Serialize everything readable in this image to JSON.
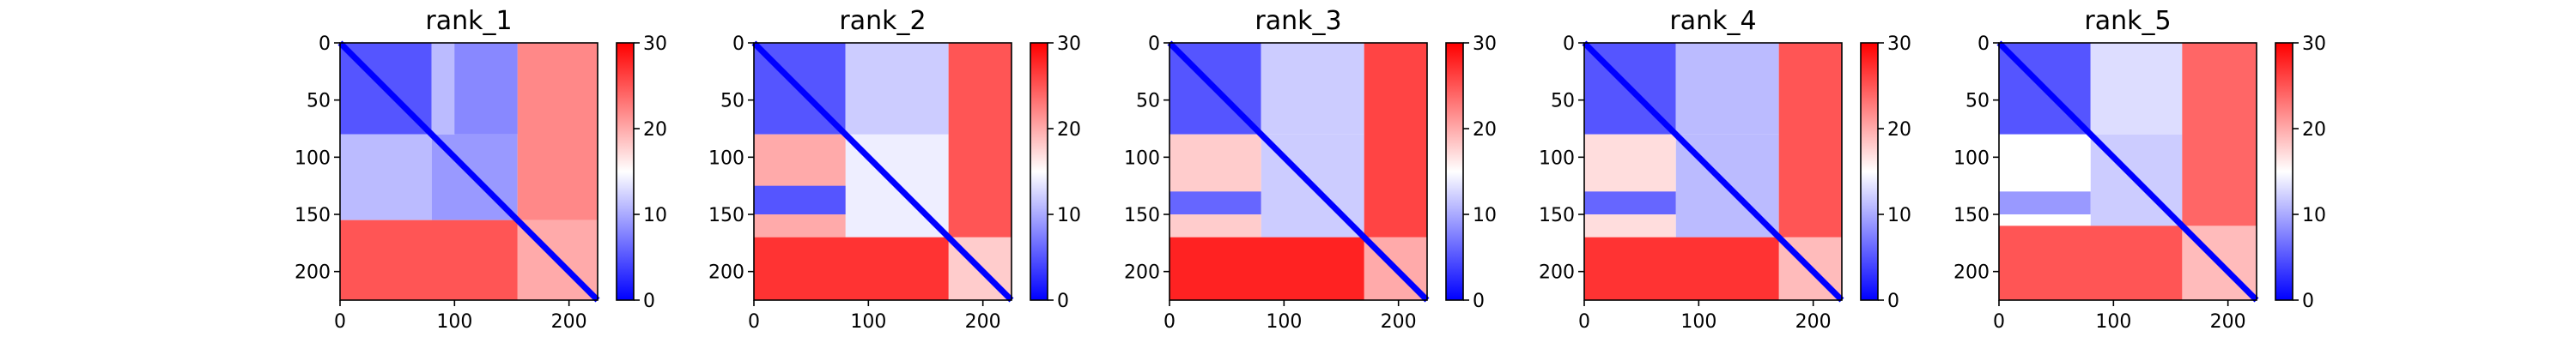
{
  "chart_data": [
    {
      "type": "heatmap",
      "title": "rank_1",
      "x_ticks": [
        "0",
        "100",
        "200"
      ],
      "y_ticks": [
        "0",
        "50",
        "100",
        "150",
        "200"
      ],
      "xlim": [
        0,
        225
      ],
      "ylim": [
        225,
        0
      ],
      "colorbar": {
        "ticks": [
          "0",
          "10",
          "20",
          "30"
        ],
        "range": [
          0,
          30
        ],
        "colormap": "bwr"
      },
      "blocks": [
        {
          "x0": 0,
          "x1": 80,
          "y0": 0,
          "y1": 80,
          "value": 5
        },
        {
          "x0": 80,
          "x1": 155,
          "y0": 80,
          "y1": 155,
          "value": 9
        },
        {
          "x0": 0,
          "x1": 80,
          "y0": 80,
          "y1": 155,
          "value": 11
        },
        {
          "x0": 80,
          "x1": 155,
          "y0": 0,
          "y1": 80,
          "value": 11
        },
        {
          "x0": 155,
          "x1": 225,
          "y0": 155,
          "y1": 225,
          "value": 20
        },
        {
          "x0": 0,
          "x1": 155,
          "y0": 155,
          "y1": 225,
          "value": 25
        },
        {
          "x0": 155,
          "x1": 225,
          "y0": 0,
          "y1": 155,
          "value": 22
        },
        {
          "x0": 100,
          "x1": 155,
          "y0": 0,
          "y1": 80,
          "value": 8
        }
      ]
    },
    {
      "type": "heatmap",
      "title": "rank_2",
      "x_ticks": [
        "0",
        "100",
        "200"
      ],
      "y_ticks": [
        "0",
        "50",
        "100",
        "150",
        "200"
      ],
      "xlim": [
        0,
        225
      ],
      "ylim": [
        225,
        0
      ],
      "colorbar": {
        "ticks": [
          "0",
          "10",
          "20",
          "30"
        ],
        "range": [
          0,
          30
        ],
        "colormap": "bwr"
      },
      "blocks": [
        {
          "x0": 0,
          "x1": 80,
          "y0": 0,
          "y1": 80,
          "value": 5
        },
        {
          "x0": 80,
          "x1": 170,
          "y0": 80,
          "y1": 170,
          "value": 14
        },
        {
          "x0": 0,
          "x1": 80,
          "y0": 80,
          "y1": 170,
          "value": 20
        },
        {
          "x0": 80,
          "x1": 170,
          "y0": 0,
          "y1": 80,
          "value": 12
        },
        {
          "x0": 0,
          "x1": 80,
          "y0": 125,
          "y1": 150,
          "value": 5
        },
        {
          "x0": 170,
          "x1": 225,
          "y0": 170,
          "y1": 225,
          "value": 18
        },
        {
          "x0": 0,
          "x1": 170,
          "y0": 170,
          "y1": 225,
          "value": 27
        },
        {
          "x0": 170,
          "x1": 225,
          "y0": 0,
          "y1": 170,
          "value": 25
        }
      ]
    },
    {
      "type": "heatmap",
      "title": "rank_3",
      "x_ticks": [
        "0",
        "100",
        "200"
      ],
      "y_ticks": [
        "0",
        "50",
        "100",
        "150",
        "200"
      ],
      "xlim": [
        0,
        225
      ],
      "ylim": [
        225,
        0
      ],
      "colorbar": {
        "ticks": [
          "0",
          "10",
          "20",
          "30"
        ],
        "range": [
          0,
          30
        ],
        "colormap": "bwr"
      },
      "blocks": [
        {
          "x0": 0,
          "x1": 80,
          "y0": 0,
          "y1": 80,
          "value": 5
        },
        {
          "x0": 80,
          "x1": 170,
          "y0": 80,
          "y1": 170,
          "value": 12
        },
        {
          "x0": 0,
          "x1": 80,
          "y0": 80,
          "y1": 170,
          "value": 18
        },
        {
          "x0": 80,
          "x1": 170,
          "y0": 0,
          "y1": 80,
          "value": 12
        },
        {
          "x0": 0,
          "x1": 80,
          "y0": 130,
          "y1": 150,
          "value": 6
        },
        {
          "x0": 170,
          "x1": 225,
          "y0": 170,
          "y1": 225,
          "value": 20
        },
        {
          "x0": 0,
          "x1": 170,
          "y0": 170,
          "y1": 225,
          "value": 28
        },
        {
          "x0": 170,
          "x1": 225,
          "y0": 0,
          "y1": 170,
          "value": 26
        }
      ]
    },
    {
      "type": "heatmap",
      "title": "rank_4",
      "x_ticks": [
        "0",
        "100",
        "200"
      ],
      "y_ticks": [
        "0",
        "50",
        "100",
        "150",
        "200"
      ],
      "xlim": [
        0,
        225
      ],
      "ylim": [
        225,
        0
      ],
      "colorbar": {
        "ticks": [
          "0",
          "10",
          "20",
          "30"
        ],
        "range": [
          0,
          30
        ],
        "colormap": "bwr"
      },
      "blocks": [
        {
          "x0": 0,
          "x1": 80,
          "y0": 0,
          "y1": 80,
          "value": 5
        },
        {
          "x0": 80,
          "x1": 170,
          "y0": 80,
          "y1": 170,
          "value": 11
        },
        {
          "x0": 0,
          "x1": 80,
          "y0": 80,
          "y1": 170,
          "value": 17
        },
        {
          "x0": 80,
          "x1": 170,
          "y0": 0,
          "y1": 80,
          "value": 11
        },
        {
          "x0": 0,
          "x1": 80,
          "y0": 130,
          "y1": 150,
          "value": 6
        },
        {
          "x0": 170,
          "x1": 225,
          "y0": 170,
          "y1": 225,
          "value": 19
        },
        {
          "x0": 0,
          "x1": 170,
          "y0": 170,
          "y1": 225,
          "value": 27
        },
        {
          "x0": 170,
          "x1": 225,
          "y0": 0,
          "y1": 170,
          "value": 25
        }
      ]
    },
    {
      "type": "heatmap",
      "title": "rank_5",
      "x_ticks": [
        "0",
        "100",
        "200"
      ],
      "y_ticks": [
        "0",
        "50",
        "100",
        "150",
        "200"
      ],
      "xlim": [
        0,
        225
      ],
      "ylim": [
        225,
        0
      ],
      "colorbar": {
        "ticks": [
          "0",
          "10",
          "20",
          "30"
        ],
        "range": [
          0,
          30
        ],
        "colormap": "bwr"
      },
      "blocks": [
        {
          "x0": 0,
          "x1": 80,
          "y0": 0,
          "y1": 80,
          "value": 5
        },
        {
          "x0": 80,
          "x1": 160,
          "y0": 80,
          "y1": 160,
          "value": 12
        },
        {
          "x0": 0,
          "x1": 80,
          "y0": 80,
          "y1": 160,
          "value": 15
        },
        {
          "x0": 80,
          "x1": 160,
          "y0": 0,
          "y1": 80,
          "value": 13
        },
        {
          "x0": 0,
          "x1": 80,
          "y0": 130,
          "y1": 150,
          "value": 9
        },
        {
          "x0": 160,
          "x1": 225,
          "y0": 160,
          "y1": 225,
          "value": 19
        },
        {
          "x0": 0,
          "x1": 160,
          "y0": 160,
          "y1": 225,
          "value": 25
        },
        {
          "x0": 160,
          "x1": 225,
          "y0": 0,
          "y1": 160,
          "value": 24
        }
      ]
    }
  ]
}
